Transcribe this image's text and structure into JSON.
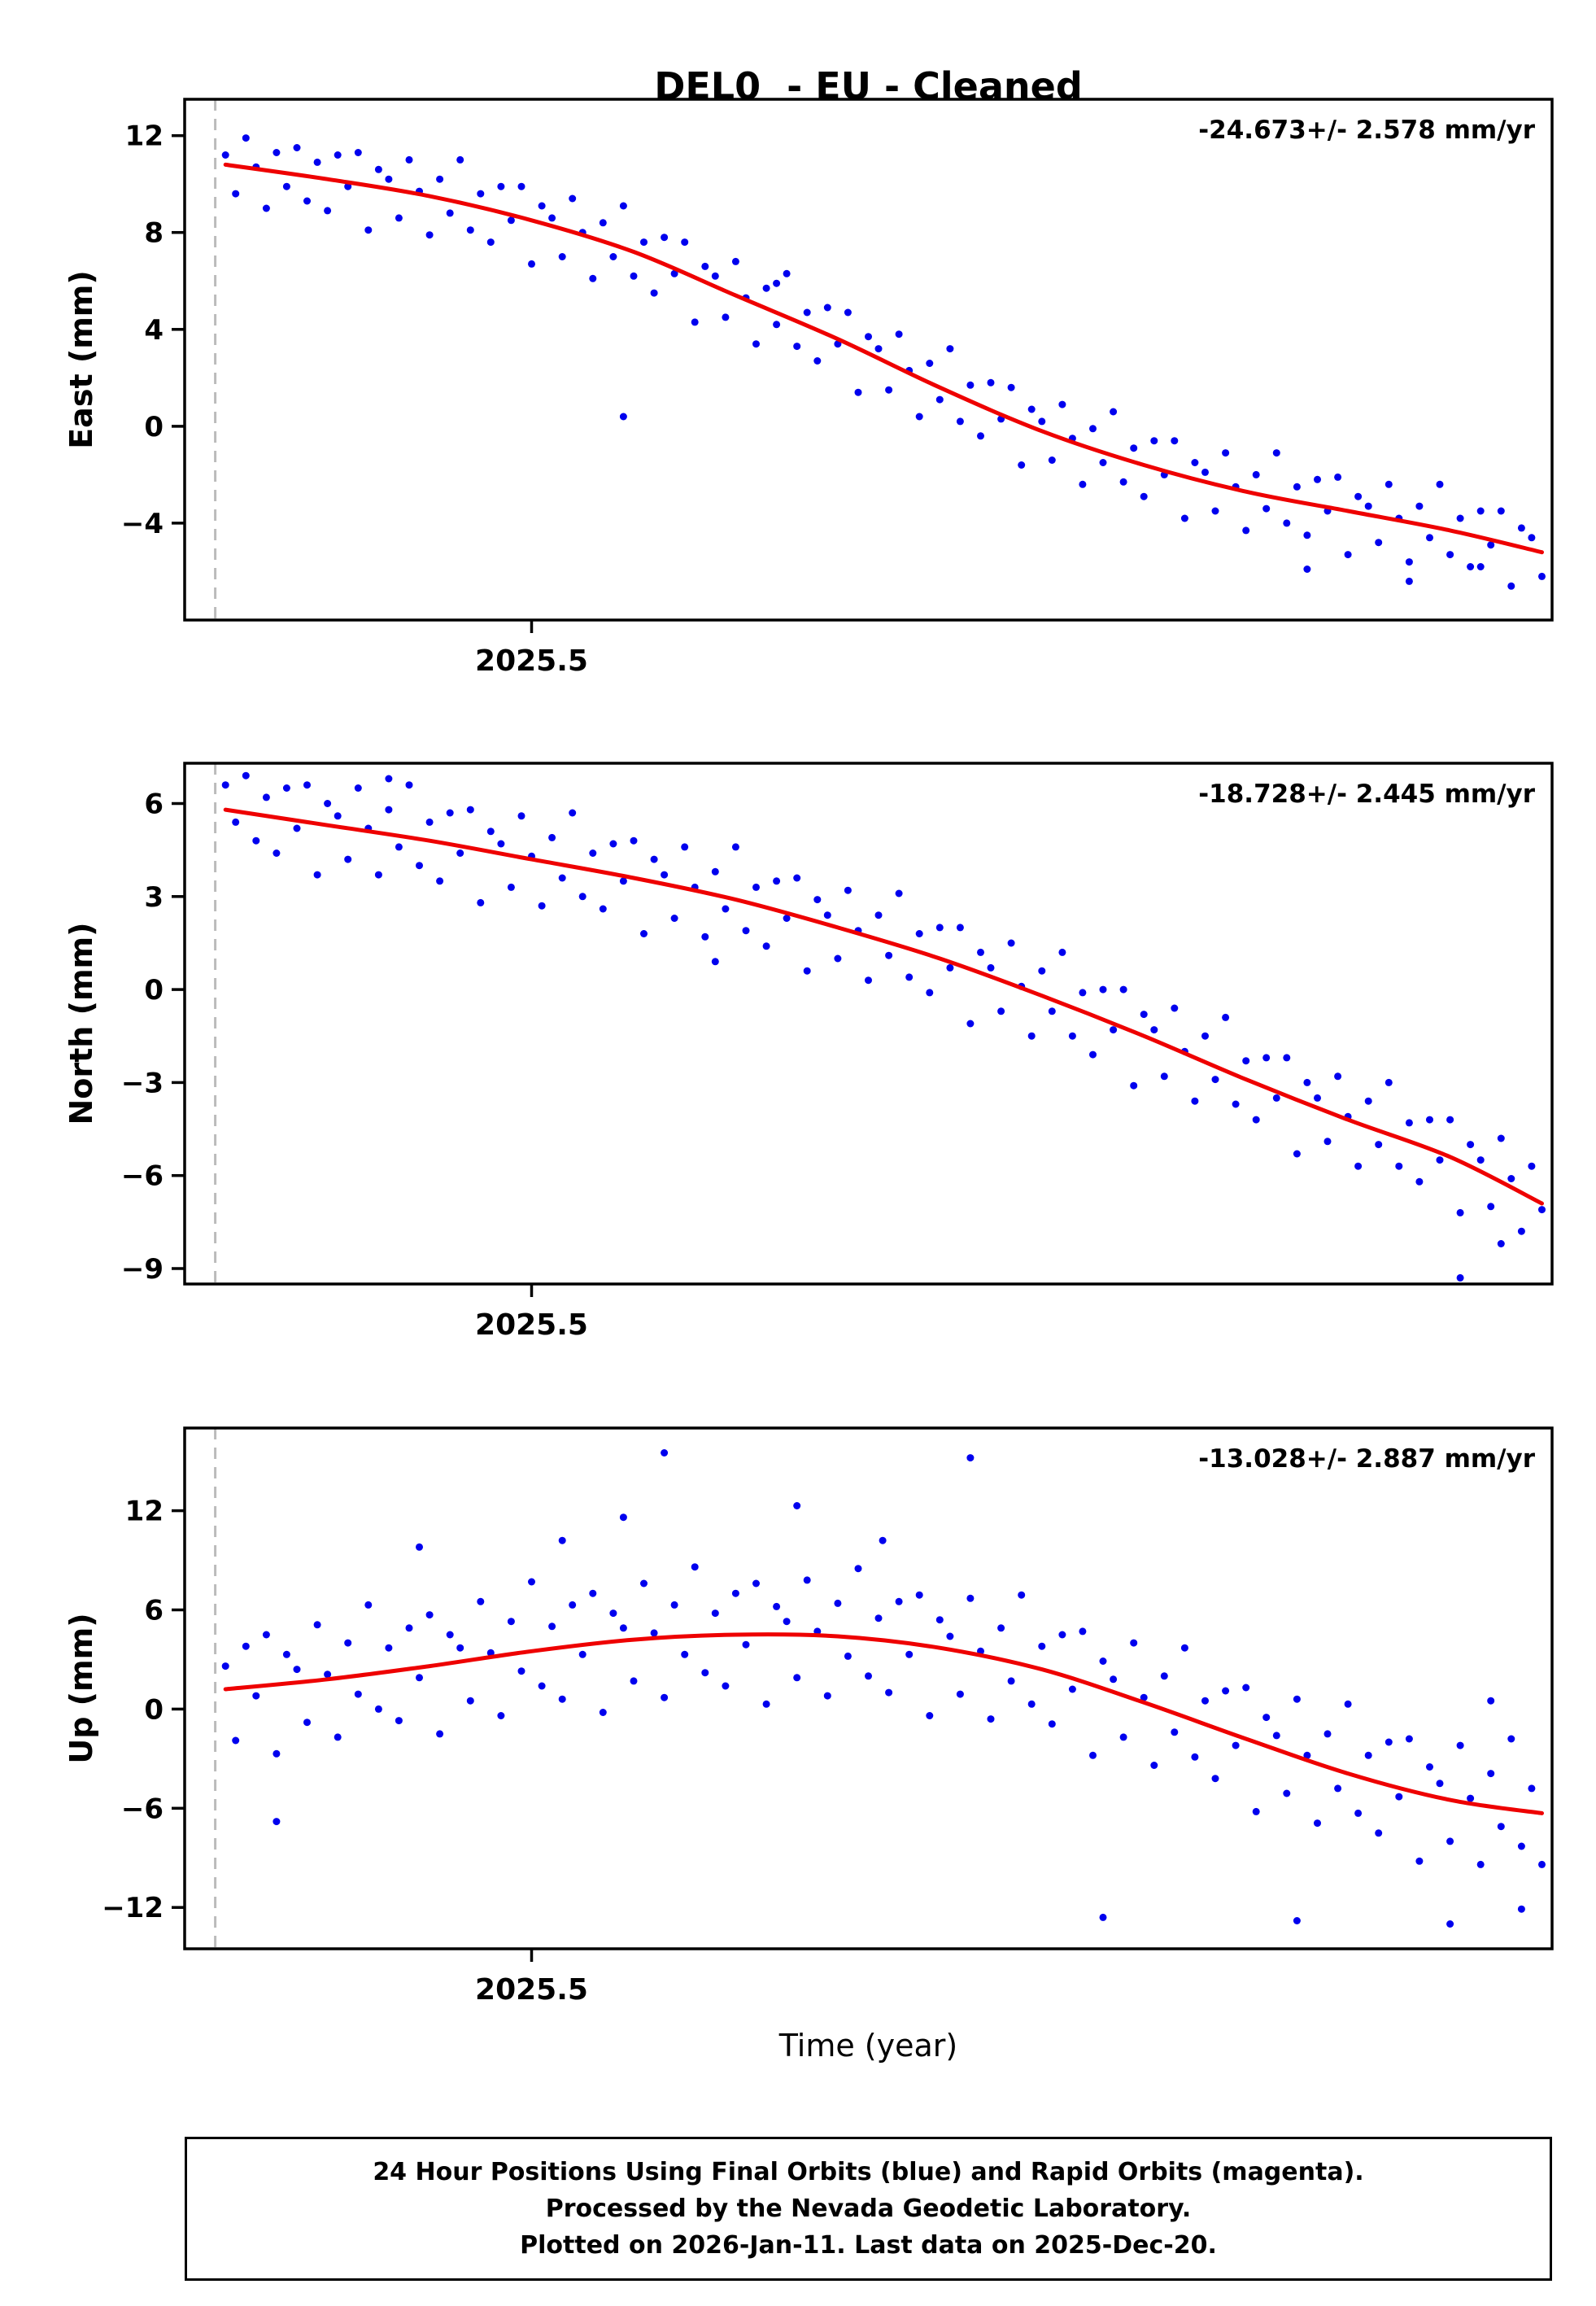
{
  "title": "DEL0  - EU - Cleaned",
  "xlabel": "Time (year)",
  "footer": {
    "line1": "24 Hour Positions Using Final Orbits (blue) and Rapid Orbits (magenta).",
    "line2": "Processed by the Nevada Geodetic Laboratory.",
    "line3": "Plotted on 2026-Jan-11. Last data on 2025-Dec-20."
  },
  "colors": {
    "points": "#0000ee",
    "trend": "#ee0000",
    "dashed": "#bbbbbb",
    "frame": "#000000"
  },
  "chart_data": [
    {
      "type": "scatter",
      "name": "east",
      "ylabel": "East (mm)",
      "rate_label": "-24.673+/- 2.578 mm/yr",
      "rate_mm_yr": -24.673,
      "rate_sigma_mm_yr": 2.578,
      "xlim": [
        2025.33,
        2026.0
      ],
      "ylim": [
        -8.0,
        13.5
      ],
      "yticks": [
        12,
        8,
        4,
        0,
        -4
      ],
      "xticks": [
        2025.5
      ],
      "xtick_labels": [
        "2025.5"
      ],
      "dash_x": 2025.345,
      "x_start": 2025.35,
      "x_step": 0.005,
      "y": [
        11.2,
        9.6,
        11.9,
        10.7,
        9.0,
        11.3,
        9.9,
        11.5,
        9.3,
        10.9,
        8.9,
        11.2,
        9.9,
        11.3,
        8.1,
        10.6,
        10.2,
        8.6,
        11.0,
        9.7,
        7.9,
        10.2,
        8.8,
        11.0,
        8.1,
        9.6,
        7.6,
        9.9,
        8.5,
        9.9,
        6.7,
        9.1,
        8.6,
        7.0,
        9.4,
        8.0,
        6.1,
        8.4,
        7.0,
        9.1,
        6.2,
        7.6,
        5.5,
        7.8,
        6.3,
        7.6,
        4.3,
        6.6,
        6.2,
        4.5,
        6.8,
        5.3,
        3.4,
        5.7,
        4.2,
        6.3,
        3.3,
        4.7,
        2.7,
        4.9,
        3.4,
        4.7,
        1.4,
        3.7,
        3.2,
        1.5,
        3.8,
        2.3,
        0.4,
        2.6,
        1.1,
        3.2,
        0.2,
        1.7,
        -0.4,
        1.8,
        0.3,
        1.6,
        -1.6,
        0.7,
        0.2,
        -1.4,
        0.9,
        -0.5,
        -2.4,
        -0.1,
        -1.5,
        0.6,
        -2.3,
        -0.9,
        -2.9,
        -0.6,
        -2.0,
        -0.6,
        -3.8,
        -1.5,
        -1.9,
        -3.5,
        -1.1,
        -2.5,
        -4.3,
        -2.0,
        -3.4,
        -1.1,
        -4.0,
        -2.5,
        -4.5,
        -2.2,
        -3.5,
        -2.1,
        -5.3,
        -2.9,
        -3.3,
        -4.8,
        -2.4,
        -3.8,
        -5.6,
        -3.3,
        -4.6,
        -2.4,
        -5.3,
        -3.8,
        -5.8,
        -3.5,
        -4.9,
        -3.5,
        -6.6,
        -4.2,
        -4.6,
        -6.2
      ],
      "extra_points": [
        [
          2025.545,
          0.4
        ],
        [
          2025.62,
          5.9
        ],
        [
          2025.88,
          -5.9
        ],
        [
          2025.93,
          -6.4
        ],
        [
          2025.965,
          -5.8
        ]
      ],
      "trend": [
        [
          2025.35,
          10.8
        ],
        [
          2025.4,
          10.2
        ],
        [
          2025.45,
          9.5
        ],
        [
          2025.5,
          8.5
        ],
        [
          2025.55,
          7.2
        ],
        [
          2025.6,
          5.4
        ],
        [
          2025.65,
          3.6
        ],
        [
          2025.7,
          1.6
        ],
        [
          2025.75,
          -0.2
        ],
        [
          2025.8,
          -1.6
        ],
        [
          2025.85,
          -2.7
        ],
        [
          2025.9,
          -3.5
        ],
        [
          2025.95,
          -4.3
        ],
        [
          2025.995,
          -5.2
        ]
      ]
    },
    {
      "type": "scatter",
      "name": "north",
      "ylabel": "North (mm)",
      "rate_label": "-18.728+/- 2.445 mm/yr",
      "rate_mm_yr": -18.728,
      "rate_sigma_mm_yr": 2.445,
      "xlim": [
        2025.33,
        2026.0
      ],
      "ylim": [
        -9.5,
        7.3
      ],
      "yticks": [
        6,
        3,
        0,
        -3,
        -6,
        -9
      ],
      "xticks": [
        2025.5
      ],
      "xtick_labels": [
        "2025.5"
      ],
      "dash_x": 2025.345,
      "x_start": 2025.35,
      "x_step": 0.005,
      "y": [
        6.6,
        5.4,
        6.9,
        4.8,
        6.2,
        4.4,
        6.5,
        5.2,
        6.6,
        3.7,
        6.0,
        5.6,
        4.2,
        6.5,
        5.2,
        3.7,
        5.8,
        4.6,
        6.6,
        4.0,
        5.4,
        3.5,
        5.7,
        4.4,
        5.8,
        2.8,
        5.1,
        4.7,
        3.3,
        5.6,
        4.3,
        2.7,
        4.9,
        3.6,
        5.7,
        3.0,
        4.4,
        2.6,
        4.7,
        3.5,
        4.8,
        1.8,
        4.2,
        3.7,
        2.3,
        4.6,
        3.3,
        1.7,
        3.8,
        2.6,
        4.6,
        1.9,
        3.3,
        1.4,
        3.5,
        2.3,
        3.6,
        0.6,
        2.9,
        2.4,
        1.0,
        3.2,
        1.9,
        0.3,
        2.4,
        1.1,
        3.1,
        0.4,
        1.8,
        -0.1,
        2.0,
        0.7,
        2.0,
        -1.1,
        1.2,
        0.7,
        -0.7,
        1.5,
        0.1,
        -1.5,
        0.6,
        -0.7,
        1.2,
        -1.5,
        -0.1,
        -2.1,
        0.0,
        -1.3,
        0.0,
        -3.1,
        -0.8,
        -1.3,
        -2.8,
        -0.6,
        -2.0,
        -3.6,
        -1.5,
        -2.9,
        -0.9,
        -3.7,
        -2.3,
        -4.2,
        -2.2,
        -3.5,
        -2.2,
        -5.3,
        -3.0,
        -3.5,
        -4.9,
        -2.8,
        -4.1,
        -5.7,
        -3.6,
        -5.0,
        -3.0,
        -5.7,
        -4.3,
        -6.2,
        -4.2,
        -5.5,
        -4.2,
        -7.2,
        -5.0,
        -5.5,
        -7.0,
        -4.8,
        -6.1,
        -7.8,
        -5.7,
        -7.1
      ],
      "extra_points": [
        [
          2025.955,
          -9.3
        ],
        [
          2025.43,
          6.8
        ],
        [
          2025.59,
          0.9
        ],
        [
          2025.975,
          -8.2
        ]
      ],
      "trend": [
        [
          2025.35,
          5.8
        ],
        [
          2025.4,
          5.3
        ],
        [
          2025.45,
          4.8
        ],
        [
          2025.5,
          4.2
        ],
        [
          2025.55,
          3.6
        ],
        [
          2025.6,
          2.9
        ],
        [
          2025.65,
          2.0
        ],
        [
          2025.7,
          1.0
        ],
        [
          2025.75,
          -0.2
        ],
        [
          2025.8,
          -1.5
        ],
        [
          2025.85,
          -2.9
        ],
        [
          2025.9,
          -4.2
        ],
        [
          2025.95,
          -5.4
        ],
        [
          2025.995,
          -6.9
        ]
      ]
    },
    {
      "type": "scatter",
      "name": "up",
      "ylabel": "Up (mm)",
      "rate_label": "-13.028+/- 2.887 mm/yr",
      "rate_mm_yr": -13.028,
      "rate_sigma_mm_yr": 2.887,
      "xlim": [
        2025.33,
        2026.0
      ],
      "ylim": [
        -14.5,
        17.0
      ],
      "yticks": [
        12,
        6,
        0,
        -6,
        -12
      ],
      "xticks": [
        2025.5
      ],
      "xtick_labels": [
        "2025.5"
      ],
      "dash_x": 2025.345,
      "x_start": 2025.35,
      "x_step": 0.005,
      "y": [
        2.6,
        -1.9,
        3.8,
        0.8,
        4.5,
        -2.7,
        3.3,
        2.4,
        -0.8,
        5.1,
        2.1,
        -1.7,
        4.0,
        0.9,
        6.3,
        0.0,
        3.7,
        -0.7,
        4.9,
        1.9,
        5.7,
        -1.5,
        4.5,
        3.7,
        0.5,
        6.5,
        3.4,
        -0.4,
        5.3,
        2.3,
        7.7,
        1.4,
        5.0,
        0.6,
        6.3,
        3.3,
        7.0,
        -0.2,
        5.8,
        4.9,
        1.7,
        7.6,
        4.6,
        0.7,
        6.3,
        3.3,
        8.6,
        2.2,
        5.8,
        1.4,
        7.0,
        3.9,
        7.6,
        0.3,
        6.2,
        5.3,
        1.9,
        7.8,
        4.7,
        0.8,
        6.4,
        3.2,
        8.5,
        2.0,
        5.5,
        1.0,
        6.5,
        3.3,
        6.9,
        -0.4,
        5.4,
        4.4,
        0.9,
        6.7,
        3.5,
        -0.6,
        4.9,
        1.7,
        6.9,
        0.3,
        3.8,
        -0.9,
        4.5,
        1.2,
        4.7,
        -2.8,
        2.9,
        1.8,
        -1.7,
        4.0,
        0.7,
        -3.4,
        2.0,
        -1.4,
        3.7,
        -2.9,
        0.5,
        -4.2,
        1.1,
        -2.2,
        1.3,
        -6.2,
        -0.5,
        -1.6,
        -5.1,
        0.6,
        -2.8,
        -6.9,
        -1.5,
        -4.8,
        0.3,
        -6.3,
        -2.8,
        -7.5,
        -2.0,
        -5.3,
        -1.8,
        -9.2,
        -3.5,
        -4.5,
        -8.0,
        -2.2,
        -5.4,
        -9.4,
        -3.9,
        -7.1,
        -1.8,
        -8.3,
        -4.8,
        -9.4
      ],
      "extra_points": [
        [
          2025.565,
          15.5
        ],
        [
          2025.715,
          15.2
        ],
        [
          2025.515,
          10.2
        ],
        [
          2025.545,
          11.6
        ],
        [
          2025.63,
          12.3
        ],
        [
          2025.445,
          9.8
        ],
        [
          2025.672,
          10.2
        ],
        [
          2025.375,
          -6.8
        ],
        [
          2025.78,
          -12.6
        ],
        [
          2025.875,
          -12.8
        ],
        [
          2025.95,
          -13.0
        ],
        [
          2025.985,
          -12.1
        ],
        [
          2025.97,
          0.5
        ]
      ],
      "trend": [
        [
          2025.35,
          1.2
        ],
        [
          2025.4,
          1.8
        ],
        [
          2025.45,
          2.6
        ],
        [
          2025.5,
          3.5
        ],
        [
          2025.55,
          4.2
        ],
        [
          2025.6,
          4.5
        ],
        [
          2025.65,
          4.4
        ],
        [
          2025.7,
          3.7
        ],
        [
          2025.75,
          2.4
        ],
        [
          2025.8,
          0.4
        ],
        [
          2025.85,
          -1.8
        ],
        [
          2025.9,
          -3.9
        ],
        [
          2025.95,
          -5.5
        ],
        [
          2025.995,
          -6.3
        ]
      ]
    }
  ]
}
